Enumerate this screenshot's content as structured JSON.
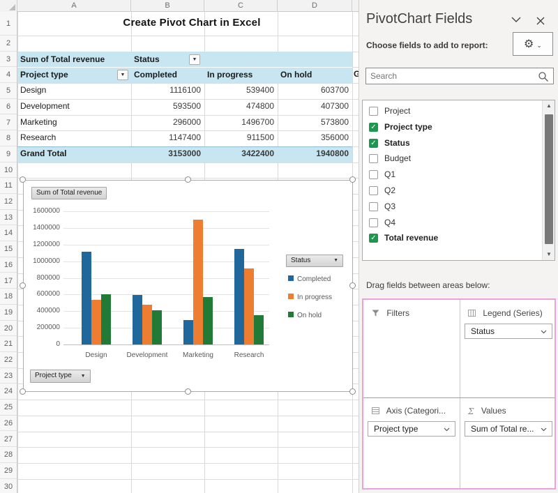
{
  "spreadsheet": {
    "column_headers": [
      "A",
      "B",
      "C",
      "D"
    ],
    "row_numbers": [
      1,
      2,
      3,
      4,
      5,
      6,
      7,
      8,
      9,
      10,
      11,
      12,
      13,
      14,
      15,
      16,
      17,
      18,
      19,
      20,
      21,
      22,
      23,
      24,
      25,
      26,
      27,
      28,
      29,
      30
    ],
    "title": "Create Pivot Chart in Excel",
    "pivot": {
      "r3_label": "Sum of Total revenue",
      "r3_field": "Status",
      "r4_label": "Project type",
      "col_headers": [
        "Completed",
        "In progress",
        "On hold"
      ],
      "col_e_clipped": "G",
      "dropdown_glyph": "▼",
      "data_rows": [
        {
          "label": "Design",
          "values": [
            1116100,
            539400,
            603700
          ]
        },
        {
          "label": "Development",
          "values": [
            593500,
            474800,
            407300
          ]
        },
        {
          "label": "Marketing",
          "values": [
            296000,
            1496700,
            573800
          ]
        },
        {
          "label": "Research",
          "values": [
            1147400,
            911500,
            356000
          ]
        }
      ],
      "grand_total": {
        "label": "Grand Total",
        "values": [
          3153000,
          3422400,
          1940800
        ]
      }
    }
  },
  "chart_data": {
    "type": "bar",
    "title": "",
    "xlabel": "",
    "ylabel": "",
    "value_field_button": "Sum of Total revenue",
    "legend_field_button": "Status",
    "axis_field_button": "Project type",
    "categories": [
      "Design",
      "Development",
      "Marketing",
      "Research"
    ],
    "series": [
      {
        "name": "Completed",
        "color": "#20689B",
        "values": [
          1116100,
          593500,
          296000,
          1147400
        ]
      },
      {
        "name": "In progress",
        "color": "#ED7D31",
        "values": [
          539400,
          474800,
          1496700,
          911500
        ]
      },
      {
        "name": "On hold",
        "color": "#217B36",
        "values": [
          603700,
          407300,
          573800,
          356000
        ]
      }
    ],
    "ylim": [
      0,
      1600000
    ],
    "ytick_step": 200000,
    "grid": true,
    "legend_position": "right"
  },
  "panel": {
    "title": "PivotChart Fields",
    "subtitle": "Choose fields to add to report:",
    "search_placeholder": "Search",
    "fields": [
      {
        "label": "Project",
        "checked": false
      },
      {
        "label": "Project type",
        "checked": true
      },
      {
        "label": "Status",
        "checked": true
      },
      {
        "label": "Budget",
        "checked": false
      },
      {
        "label": "Q1",
        "checked": false
      },
      {
        "label": "Q2",
        "checked": false
      },
      {
        "label": "Q3",
        "checked": false
      },
      {
        "label": "Q4",
        "checked": false
      },
      {
        "label": "Total revenue",
        "checked": true
      }
    ],
    "drag_label": "Drag fields between areas below:",
    "areas": {
      "filters": {
        "title": "Filters",
        "items": []
      },
      "legend": {
        "title": "Legend (Series)",
        "items": [
          "Status"
        ]
      },
      "axis": {
        "title": "Axis (Categori...",
        "items": [
          "Project type"
        ]
      },
      "values": {
        "title": "Values",
        "items": [
          "Sum of Total re..."
        ]
      }
    }
  },
  "colors": {
    "pivot_fill": "#C8E6F2",
    "accent_pink": "#E9A2DC",
    "check_green": "#1F9751"
  }
}
